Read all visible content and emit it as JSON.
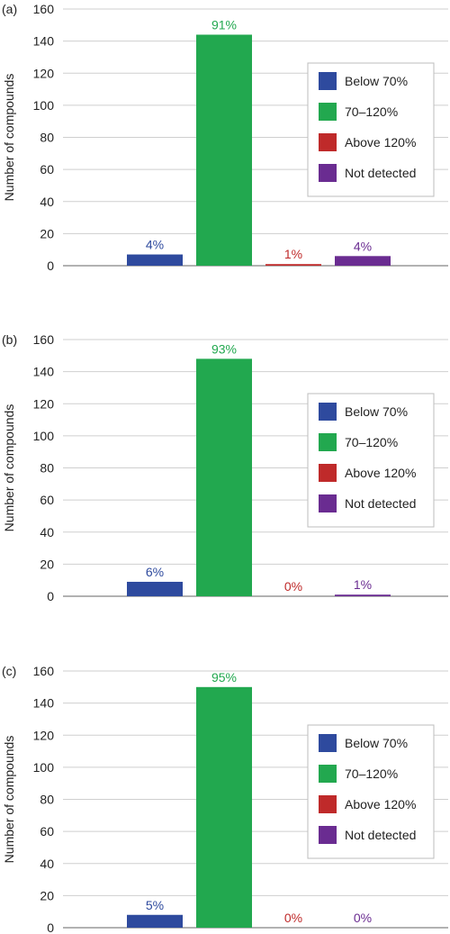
{
  "colors": {
    "below": "#2e4a9e",
    "within": "#22a84f",
    "above": "#bf2a2a",
    "not_detected": "#6a2c91",
    "grid": "#cfcfcf",
    "axis": "#666666",
    "text": "#222222",
    "legend_border": "#bdbdbd"
  },
  "chart_data": [
    {
      "type": "bar",
      "panel_label": "(a)",
      "categories": [
        "Below 70%",
        "70–120%",
        "Above 120%",
        "Not detected"
      ],
      "values": [
        7,
        144,
        1,
        6
      ],
      "data_labels": [
        "4%",
        "91%",
        "1%",
        "4%"
      ],
      "ylabel": "Number of compounds",
      "ylim": [
        0,
        160
      ],
      "yticks": [
        0,
        20,
        40,
        60,
        80,
        100,
        120,
        140,
        160
      ],
      "grid": true,
      "legend": {
        "placement": "right",
        "entries": [
          "Below 70%",
          "70–120%",
          "Above 120%",
          "Not detected"
        ]
      }
    },
    {
      "type": "bar",
      "panel_label": "(b)",
      "categories": [
        "Below 70%",
        "70–120%",
        "Above 120%",
        "Not detected"
      ],
      "values": [
        9,
        148,
        0,
        1
      ],
      "data_labels": [
        "6%",
        "93%",
        "0%",
        "1%"
      ],
      "ylabel": "Number of compounds",
      "ylim": [
        0,
        160
      ],
      "yticks": [
        0,
        20,
        40,
        60,
        80,
        100,
        120,
        140,
        160
      ],
      "grid": true,
      "legend": {
        "placement": "right",
        "entries": [
          "Below 70%",
          "70–120%",
          "Above 120%",
          "Not detected"
        ]
      }
    },
    {
      "type": "bar",
      "panel_label": "(c)",
      "categories": [
        "Below 70%",
        "70–120%",
        "Above 120%",
        "Not detected"
      ],
      "values": [
        8,
        150,
        0,
        0
      ],
      "data_labels": [
        "5%",
        "95%",
        "0%",
        "0%"
      ],
      "ylabel": "Number of compounds",
      "ylim": [
        0,
        160
      ],
      "yticks": [
        0,
        20,
        40,
        60,
        80,
        100,
        120,
        140,
        160
      ],
      "grid": true,
      "legend": {
        "placement": "right",
        "entries": [
          "Below 70%",
          "70–120%",
          "Above 120%",
          "Not detected"
        ]
      }
    }
  ]
}
